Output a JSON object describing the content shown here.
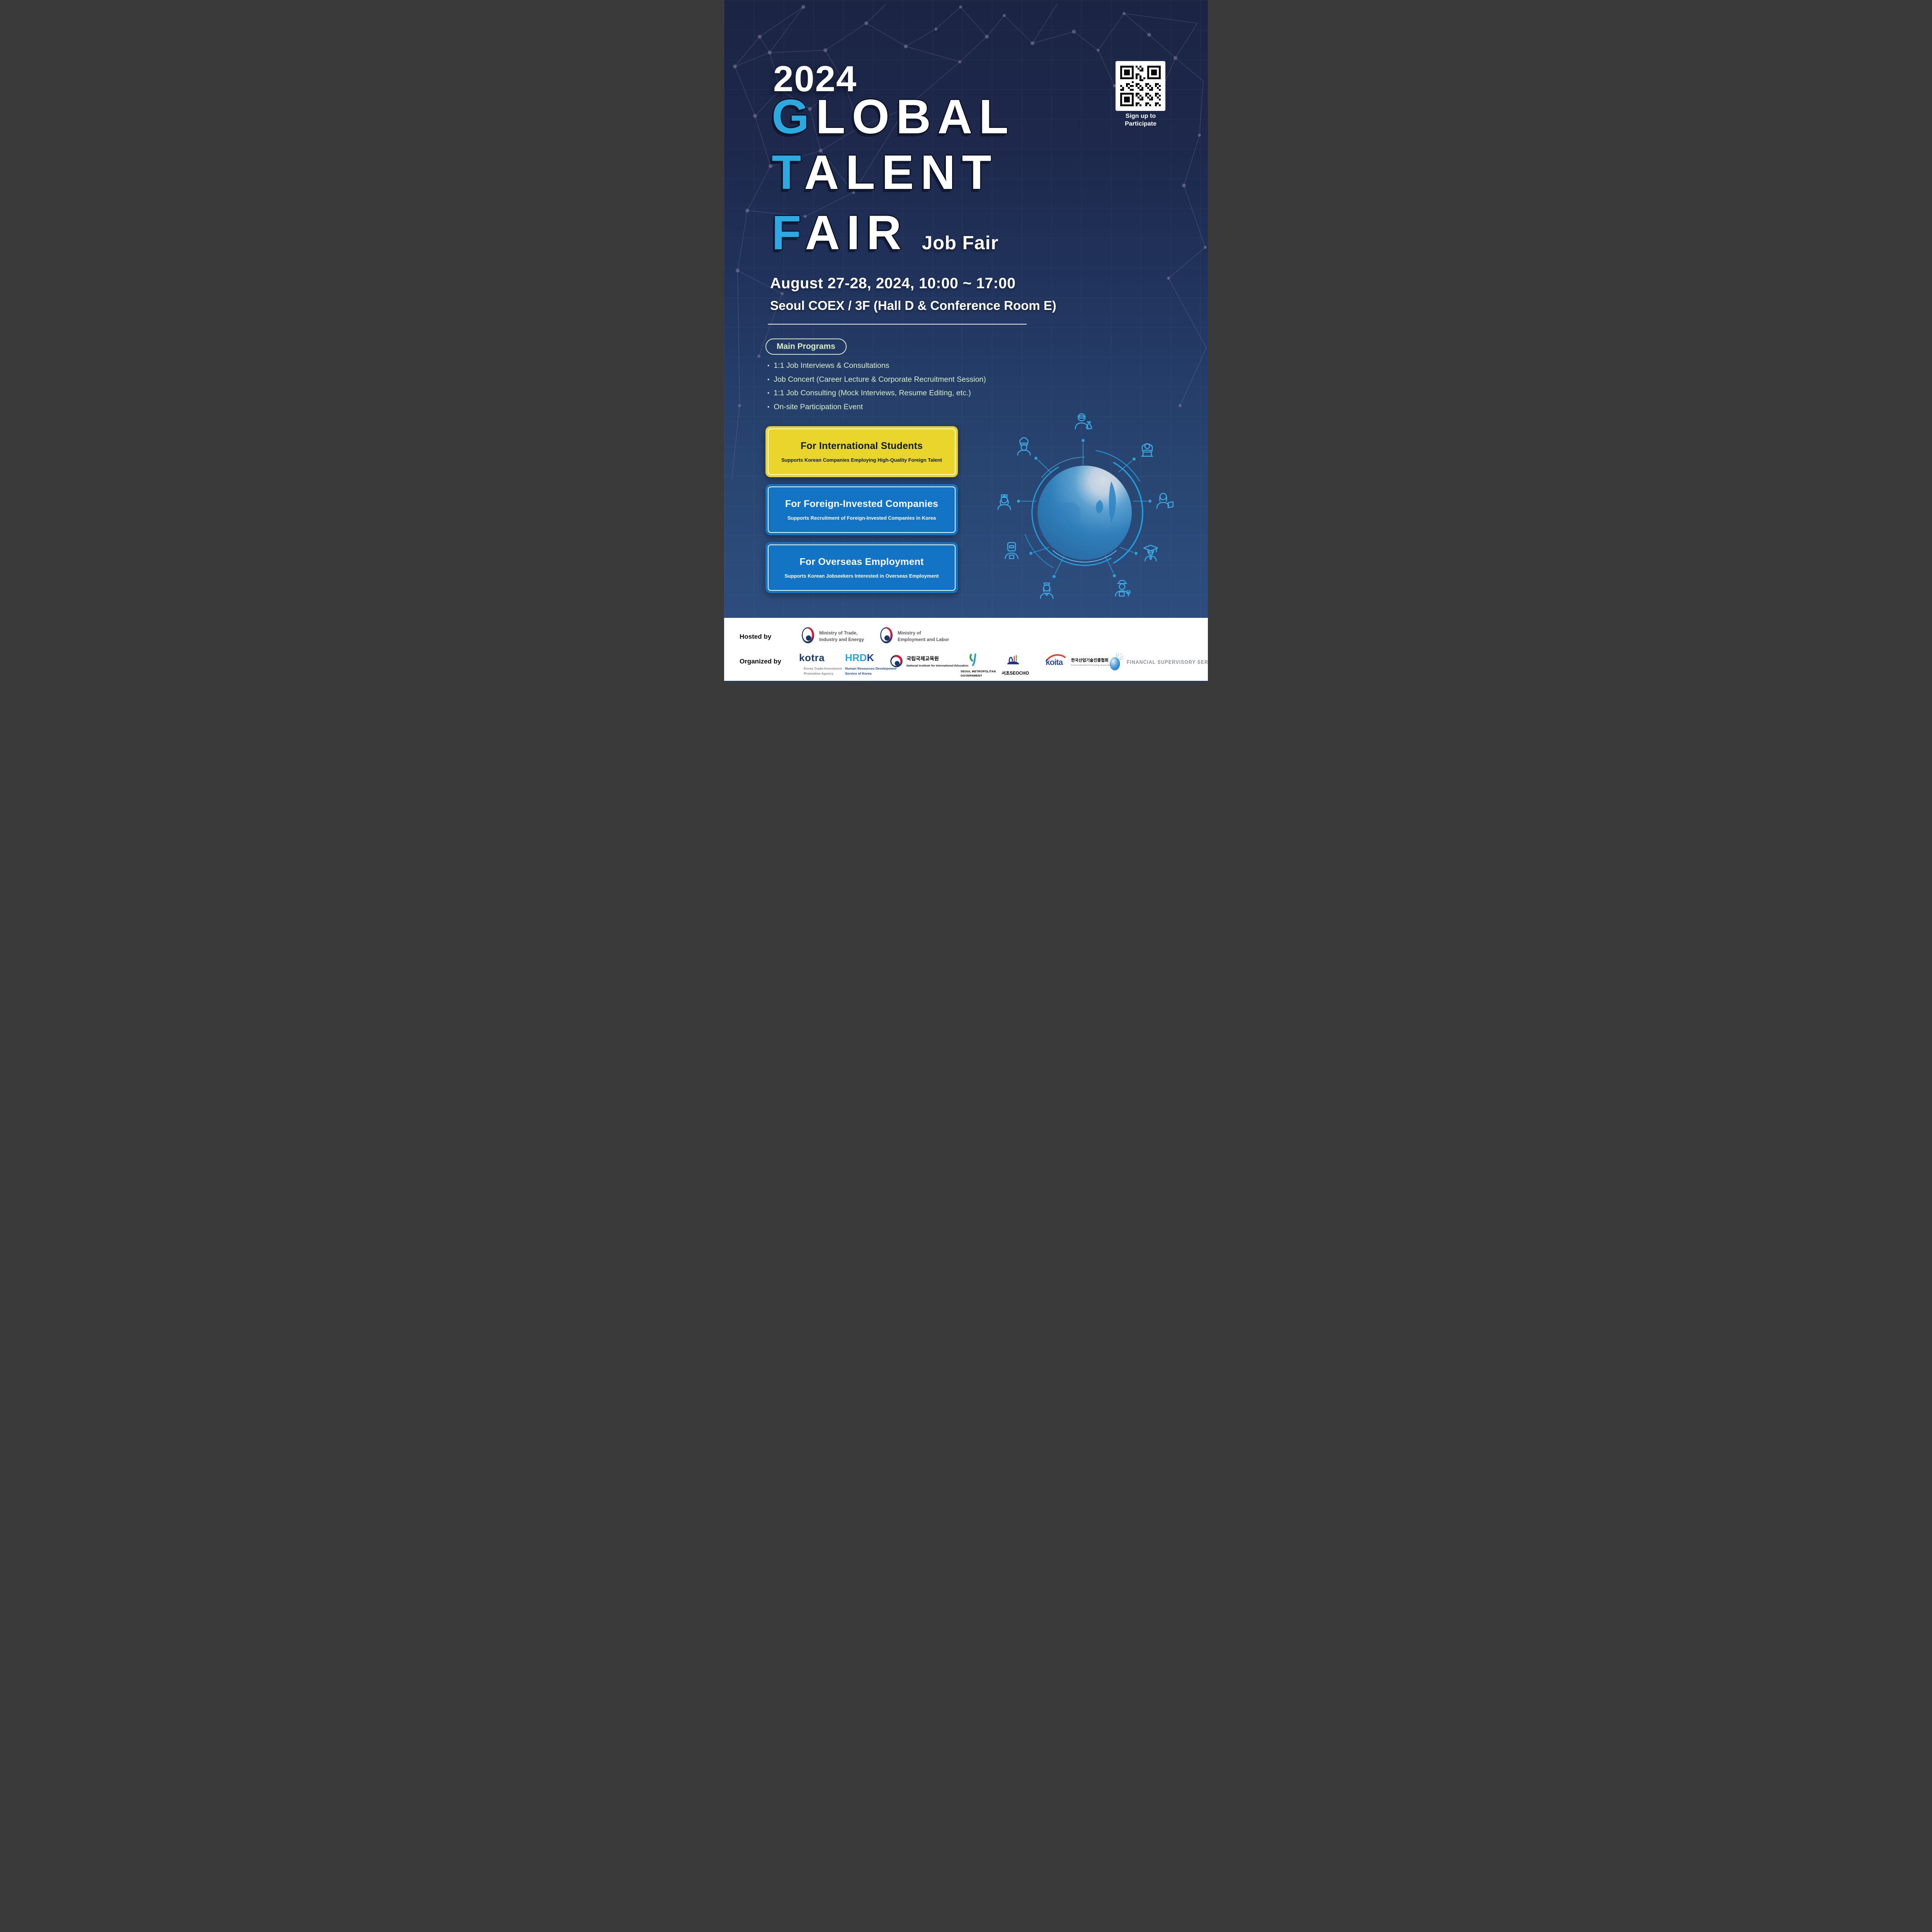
{
  "poster": {
    "year": "2024",
    "title": {
      "line1": {
        "accent": "G",
        "rest": "LOBAL"
      },
      "line2": {
        "accent": "T",
        "rest": "ALENT"
      },
      "line3": {
        "accent": "F",
        "rest": "AIR"
      },
      "suffix": "Job Fair"
    },
    "qr": {
      "caption_line1": "Sign up to",
      "caption_line2": "Participate"
    },
    "schedule": "August 27-28, 2024, 10:00 ~ 17:00",
    "venue": "Seoul COEX / 3F (Hall D & Conference Room E)",
    "programs": {
      "heading": "Main Programs",
      "items": [
        "1:1 Job Interviews & Consultations",
        "Job Concert (Career Lecture & Corporate Recruitment Session)",
        "1:1 Job Consulting (Mock Interviews, Resume Editing, etc.)",
        "On-site Participation Event"
      ]
    },
    "cards": [
      {
        "title": "For International Students",
        "subtitle": "Supports Korean Companies Employing High-Quality Foreign Talent"
      },
      {
        "title": "For Foreign-Invested Companies",
        "subtitle": "Supports Recruitment of Foreign-Invested Companies in Korea"
      },
      {
        "title": "For Overseas Employment",
        "subtitle": "Supports Korean Jobseekers Interested in Overseas Employment"
      }
    ]
  },
  "illustration": {
    "icons": [
      "scientist-icon",
      "chef-icon",
      "developer-icon",
      "nurse-icon",
      "reading-student-icon",
      "welder-icon",
      "graduate-icon",
      "flight-attendant-icon",
      "mechanic-icon"
    ]
  },
  "footer": {
    "hosted_label": "Hosted by",
    "organized_label": "Organized by",
    "hosted": [
      {
        "line1": "Ministry of Trade,",
        "line2": "Industry and Energy"
      },
      {
        "line1": "Ministry of",
        "line2": "Employment and Labor"
      }
    ],
    "organizers": {
      "kotra": {
        "wordmark": "kotra",
        "line1": "Korea Trade-Investment",
        "line2": "Promotion Agency"
      },
      "hrdk": {
        "light": "HRD",
        "dark": "K",
        "line1": "Human Resources Development",
        "line2": "Service of Korea"
      },
      "niied": {
        "kr": "국립국제교육원",
        "en": "National Institute for International Education"
      },
      "smg": {
        "line1": "SEOUL METROPOLITAN",
        "line2": "GOVERNMENT"
      },
      "seocho": {
        "kr": "서초",
        "en": "SEOCHO"
      },
      "koita": {
        "wordmark": "koita",
        "kr": "한국산업기술진흥협회",
        "en": "Korea Industrial Technology Association"
      },
      "fss": {
        "en": "FINANCIAL SUPERVISORY SERVIC"
      }
    }
  },
  "colors": {
    "background_top": "#1b2443",
    "background_bottom": "#2d4d7e",
    "accent_blue": "#2aa9e2",
    "pale_green": "#d9eec6",
    "card_yellow": "#e9d52b",
    "card_blue": "#1374c6",
    "footer_white": "#ffffff"
  }
}
